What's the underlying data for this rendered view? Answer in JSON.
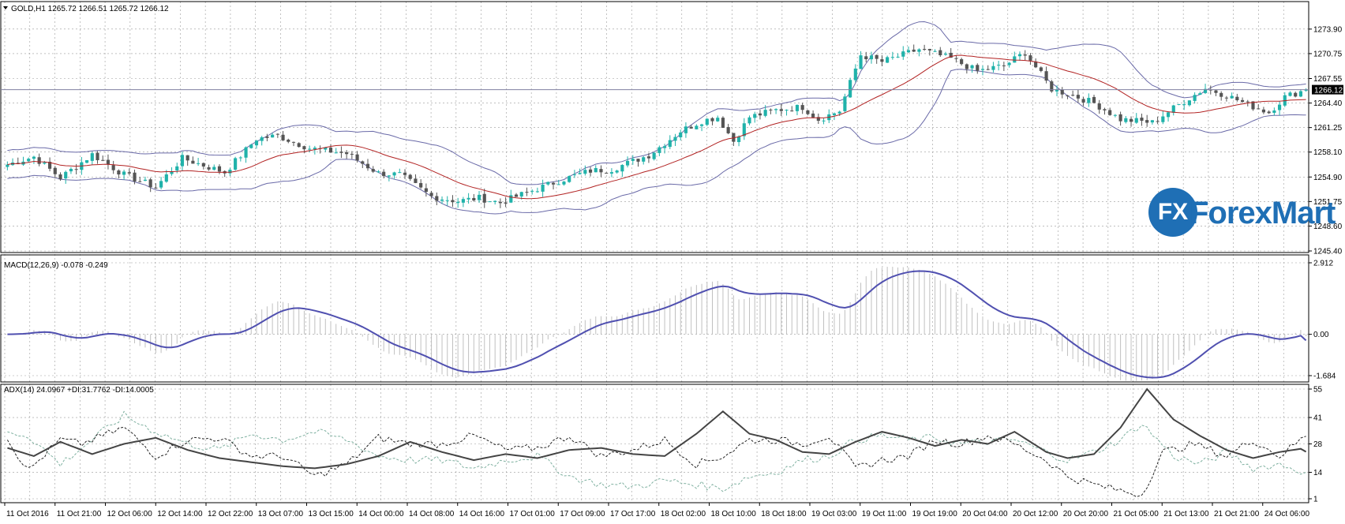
{
  "main_header": {
    "icon": "triangle-down-icon",
    "text": "GOLD,H1  1265.72 1266.51 1265.72 1266.12"
  },
  "macd_header": {
    "text": "MACD(12,26,9) -0.078 -0.249"
  },
  "adx_header": {
    "text": "ADX(14) 24.0967 +DI:31.7762 -DI:14.0005"
  },
  "current_price_label": "1266.12",
  "logo": {
    "mark": "FX",
    "text": "ForexMart",
    "color": "#1f6fb5"
  },
  "colors": {
    "up_candle": "#20b2aa",
    "down_candle": "#555555",
    "bands": "#6a6aa8",
    "ma": "#b22222",
    "macd_signal": "#5050b0",
    "macd_hist": "#c0c0c0",
    "adx": "#444444",
    "plus_di": "#222222",
    "minus_di": "#7fb0a0",
    "grid": "#9a9a9a"
  },
  "chart_data": [
    {
      "type": "candlestick",
      "title": "GOLD,H1",
      "ylim": [
        1245.4,
        1275.0
      ],
      "yticks": [
        "1273.90",
        "1270.75",
        "1267.55",
        "1264.40",
        "1261.25",
        "1258.10",
        "1254.90",
        "1251.75",
        "1248.60",
        "1245.40"
      ],
      "xticks": [
        "11 Oct 2016",
        "11 Oct 21:00",
        "12 Oct 06:00",
        "12 Oct 14:00",
        "12 Oct 22:00",
        "13 Oct 07:00",
        "13 Oct 15:00",
        "14 Oct 00:00",
        "14 Oct 08:00",
        "14 Oct 16:00",
        "17 Oct 01:00",
        "17 Oct 09:00",
        "17 Oct 17:00",
        "18 Oct 02:00",
        "18 Oct 10:00",
        "18 Oct 18:00",
        "19 Oct 03:00",
        "19 Oct 11:00",
        "19 Oct 19:00",
        "20 Oct 04:00",
        "20 Oct 12:00",
        "20 Oct 20:00",
        "21 Oct 05:00",
        "21 Oct 13:00",
        "21 Oct 21:00",
        "24 Oct 06:00"
      ],
      "close_anchors": [
        [
          0,
          1256.5
        ],
        [
          5,
          1257.5
        ],
        [
          10,
          1254.8
        ],
        [
          16,
          1257.8
        ],
        [
          22,
          1255.2
        ],
        [
          28,
          1253.6
        ],
        [
          33,
          1257.3
        ],
        [
          41,
          1255.5
        ],
        [
          47,
          1259.8
        ],
        [
          51,
          1260.2
        ],
        [
          57,
          1258.6
        ],
        [
          64,
          1257.9
        ],
        [
          70,
          1255.4
        ],
        [
          74,
          1255.2
        ],
        [
          80,
          1252.4
        ],
        [
          85,
          1251.8
        ],
        [
          89,
          1252.2
        ],
        [
          93,
          1251.6
        ],
        [
          98,
          1252.9
        ],
        [
          104,
          1254.4
        ],
        [
          110,
          1255.7
        ],
        [
          114,
          1255.9
        ],
        [
          121,
          1257.7
        ],
        [
          127,
          1260.8
        ],
        [
          131,
          1262.1
        ],
        [
          134,
          1262.6
        ],
        [
          137,
          1259.5
        ],
        [
          140,
          1262.6
        ],
        [
          145,
          1263.5
        ],
        [
          150,
          1263.9
        ],
        [
          153,
          1262.3
        ],
        [
          157,
          1263.4
        ],
        [
          161,
          1270.6
        ],
        [
          165,
          1269.7
        ],
        [
          172,
          1271.3
        ],
        [
          178,
          1270.1
        ],
        [
          183,
          1268.5
        ],
        [
          188,
          1269.2
        ],
        [
          192,
          1270.9
        ],
        [
          197,
          1266.2
        ],
        [
          201,
          1265.4
        ],
        [
          205,
          1264.4
        ],
        [
          210,
          1262.3
        ],
        [
          216,
          1261.9
        ],
        [
          221,
          1264.2
        ],
        [
          226,
          1266.3
        ],
        [
          230,
          1265.4
        ],
        [
          234,
          1264.2
        ],
        [
          238,
          1263.2
        ],
        [
          241,
          1265.2
        ],
        [
          245,
          1266.12
        ]
      ],
      "bollinger_period": 20,
      "ma_period": 20,
      "current_price": 1266.12
    },
    {
      "type": "macd",
      "title": "MACD(12,26,9) -0.078 -0.249",
      "ylim": [
        -1.684,
        2.912
      ],
      "yticks": [
        "2.912",
        "0.00",
        "-1.684"
      ],
      "main": -0.078,
      "signal": -0.249
    },
    {
      "type": "adx",
      "title": "ADX(14) 24.0967 +DI:31.7762 -DI:14.0005",
      "ylim": [
        1,
        55
      ],
      "yticks": [
        "55",
        "41",
        "28",
        "14",
        "1"
      ],
      "adx_anchors": [
        [
          0,
          26
        ],
        [
          5,
          22
        ],
        [
          10,
          29
        ],
        [
          16,
          23
        ],
        [
          22,
          28
        ],
        [
          28,
          31
        ],
        [
          34,
          25
        ],
        [
          40,
          21
        ],
        [
          46,
          19
        ],
        [
          52,
          17
        ],
        [
          58,
          16
        ],
        [
          64,
          18
        ],
        [
          70,
          22
        ],
        [
          76,
          29
        ],
        [
          82,
          24
        ],
        [
          88,
          20
        ],
        [
          94,
          23
        ],
        [
          100,
          21
        ],
        [
          106,
          25
        ],
        [
          112,
          26
        ],
        [
          118,
          23
        ],
        [
          124,
          22
        ],
        [
          130,
          33
        ],
        [
          135,
          44
        ],
        [
          140,
          33
        ],
        [
          145,
          30
        ],
        [
          150,
          24
        ],
        [
          155,
          23
        ],
        [
          160,
          29
        ],
        [
          165,
          34
        ],
        [
          170,
          31
        ],
        [
          175,
          27
        ],
        [
          180,
          30
        ],
        [
          185,
          28
        ],
        [
          190,
          34
        ],
        [
          196,
          24
        ],
        [
          200,
          21
        ],
        [
          205,
          23
        ],
        [
          210,
          36
        ],
        [
          215,
          55
        ],
        [
          220,
          40
        ],
        [
          225,
          32
        ],
        [
          230,
          25
        ],
        [
          235,
          21
        ],
        [
          240,
          24
        ],
        [
          245,
          26
        ]
      ],
      "plus_di_anchors": [
        [
          0,
          30
        ],
        [
          4,
          15
        ],
        [
          10,
          30
        ],
        [
          14,
          28
        ],
        [
          22,
          36
        ],
        [
          28,
          22
        ],
        [
          34,
          30
        ],
        [
          40,
          31
        ],
        [
          46,
          22
        ],
        [
          52,
          22
        ],
        [
          58,
          12
        ],
        [
          64,
          18
        ],
        [
          70,
          31
        ],
        [
          76,
          28
        ],
        [
          82,
          28
        ],
        [
          88,
          32
        ],
        [
          94,
          25
        ],
        [
          100,
          26
        ],
        [
          106,
          32
        ],
        [
          112,
          22
        ],
        [
          118,
          25
        ],
        [
          124,
          30
        ],
        [
          130,
          18
        ],
        [
          135,
          22
        ],
        [
          140,
          30
        ],
        [
          145,
          30
        ],
        [
          150,
          28
        ],
        [
          155,
          32
        ],
        [
          160,
          16
        ],
        [
          165,
          20
        ],
        [
          170,
          22
        ],
        [
          175,
          30
        ],
        [
          180,
          28
        ],
        [
          185,
          32
        ],
        [
          190,
          28
        ],
        [
          196,
          20
        ],
        [
          200,
          12
        ],
        [
          205,
          8
        ],
        [
          210,
          5
        ],
        [
          214,
          3
        ],
        [
          218,
          24
        ],
        [
          224,
          28
        ],
        [
          230,
          22
        ],
        [
          235,
          30
        ],
        [
          240,
          22
        ],
        [
          245,
          32
        ]
      ],
      "minus_di_anchors": [
        [
          0,
          34
        ],
        [
          4,
          32
        ],
        [
          10,
          18
        ],
        [
          14,
          26
        ],
        [
          22,
          42
        ],
        [
          28,
          34
        ],
        [
          34,
          28
        ],
        [
          40,
          25
        ],
        [
          46,
          33
        ],
        [
          52,
          30
        ],
        [
          58,
          34
        ],
        [
          64,
          30
        ],
        [
          70,
          22
        ],
        [
          76,
          20
        ],
        [
          82,
          20
        ],
        [
          88,
          16
        ],
        [
          94,
          20
        ],
        [
          100,
          22
        ],
        [
          106,
          12
        ],
        [
          112,
          8
        ],
        [
          118,
          7
        ],
        [
          124,
          10
        ],
        [
          130,
          8
        ],
        [
          135,
          6
        ],
        [
          140,
          12
        ],
        [
          145,
          14
        ],
        [
          150,
          20
        ],
        [
          155,
          22
        ],
        [
          160,
          30
        ],
        [
          165,
          32
        ],
        [
          170,
          30
        ],
        [
          175,
          31
        ],
        [
          180,
          28
        ],
        [
          185,
          29
        ],
        [
          190,
          30
        ],
        [
          196,
          24
        ],
        [
          200,
          20
        ],
        [
          205,
          24
        ],
        [
          210,
          30
        ],
        [
          214,
          38
        ],
        [
          220,
          22
        ],
        [
          225,
          18
        ],
        [
          230,
          24
        ],
        [
          235,
          16
        ],
        [
          240,
          18
        ],
        [
          245,
          14
        ]
      ]
    }
  ]
}
